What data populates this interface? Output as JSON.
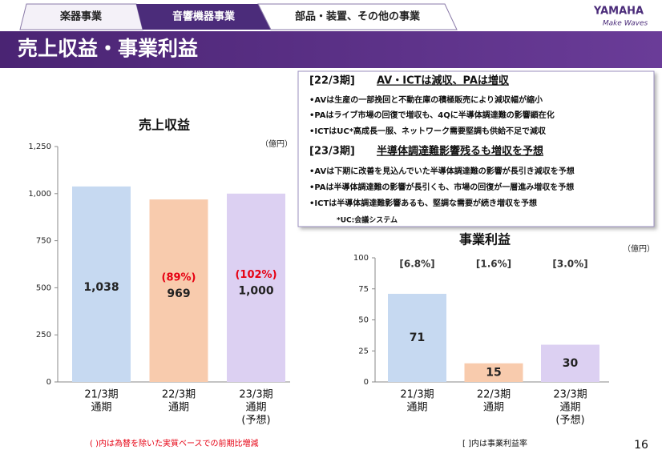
{
  "tabs": [
    "楽器事業",
    "音響機器事業",
    "部品・装置、その他の事業"
  ],
  "logo": {
    "brand": "YAMAHA",
    "tagline": "Make Waves"
  },
  "header": {
    "title": "売上収益・事業利益"
  },
  "notes": {
    "sections": [
      {
        "period": "[22/3期]",
        "heading": "AV・ICTは減収、PAは増収",
        "bullets": [
          "•AVは生産の一部挽回と不動在庫の積極販売により減収幅が縮小",
          "•PAはライブ市場の回復で増収も、4Qに半導体調達難の影響顕在化",
          "•ICTはUC*高成長一服、ネットワーク需要堅調も供給不足で減収"
        ]
      },
      {
        "period": "[23/3期]",
        "heading": "半導体調達難影響残るも増収を予想",
        "bullets": [
          "•AVは下期に改善を見込んでいた半導体調達難の影響が長引き減収を予想",
          "•PAは半導体調達難の影響が長引くも、市場の回復が一層進み増収を予想",
          "•ICTは半導体調達難影響あるも、堅調な需要が続き増収を予想"
        ]
      }
    ],
    "footnote": "*UC:会議システム"
  },
  "chart_data": [
    {
      "type": "bar",
      "title": "売上収益",
      "unit": "（億円）",
      "categories": [
        [
          "21/3期",
          "通期"
        ],
        [
          "22/3期",
          "通期"
        ],
        [
          "23/3期",
          "通期",
          "(予想)"
        ]
      ],
      "values": [
        1038,
        969,
        1000
      ],
      "value_labels": [
        "1,038",
        "969",
        "1,000"
      ],
      "annotations": [
        null,
        "(89%)",
        "(102%)"
      ],
      "annotation_color": "#e60012",
      "colors": [
        "#c6d9f1",
        "#f8cbad",
        "#dcd0f2"
      ],
      "ylim": [
        0,
        1250
      ],
      "yticks": [
        0,
        250,
        500,
        750,
        {
          "value": 1000,
          "label": "1,000"
        },
        {
          "value": 1250,
          "label": "1,250"
        }
      ]
    },
    {
      "type": "bar",
      "title": "事業利益",
      "unit": "（億円）",
      "categories": [
        [
          "21/3期",
          "通期"
        ],
        [
          "22/3期",
          "通期"
        ],
        [
          "23/3期",
          "通期",
          "(予想)"
        ]
      ],
      "values": [
        71,
        15,
        30
      ],
      "annotations": [
        "[6.8%]",
        "[1.6%]",
        "[3.0%]"
      ],
      "annotation_color": "#333333",
      "colors": [
        "#c6d9f1",
        "#f8cbad",
        "#dcd0f2"
      ],
      "ylim": [
        0,
        100
      ],
      "yticks": [
        0,
        25,
        50,
        75,
        100
      ]
    }
  ],
  "footer": {
    "left": "( )内は為替を除いた実質ベースでの前期比増減",
    "center": "[ ]内は事業利益率",
    "page": "16"
  }
}
